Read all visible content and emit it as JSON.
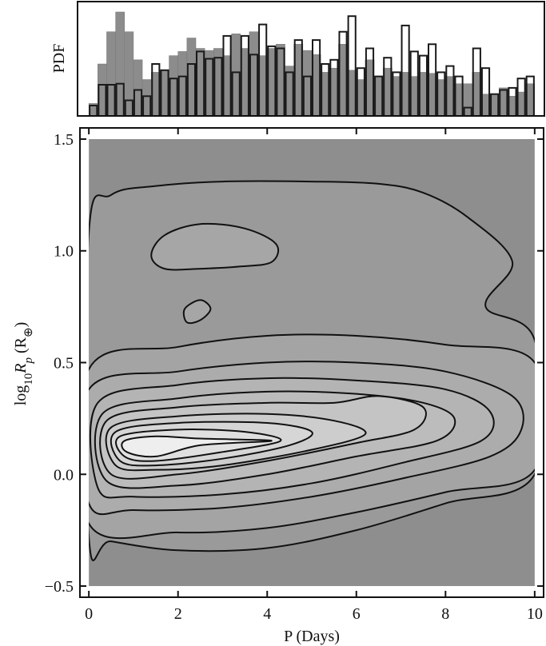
{
  "chart_data": [
    {
      "type": "histogram",
      "ylabel": "PDF",
      "xlim": [
        -0.2,
        10.2
      ],
      "ylim": [
        0,
        1.1
      ],
      "bins": [
        0,
        0.2,
        0.4,
        0.6,
        0.8,
        1,
        1.2,
        1.4,
        1.6,
        1.8,
        2,
        2.2,
        2.4,
        2.6,
        2.8,
        3,
        3.2,
        3.4,
        3.6,
        3.8,
        4,
        4.2,
        4.4,
        4.6,
        4.8,
        5,
        5.2,
        5.4,
        5.6,
        5.8,
        6,
        6.2,
        6.4,
        6.6,
        6.8,
        7,
        7.2,
        7.4,
        7.6,
        7.8,
        8,
        8.2,
        8.4,
        8.6,
        8.8,
        9,
        9.2,
        9.4,
        9.6,
        9.8,
        10
      ],
      "series": [
        {
          "color": "#8c8c8c",
          "filled": true,
          "values": [
            0.12,
            0.5,
            0.81,
            1.0,
            0.81,
            0.54,
            0.35,
            0.42,
            0.44,
            0.58,
            0.62,
            0.75,
            0.65,
            0.63,
            0.65,
            0.58,
            0.79,
            0.65,
            0.81,
            0.58,
            0.65,
            0.69,
            0.48,
            0.69,
            0.63,
            0.59,
            0.42,
            0.46,
            0.69,
            0.44,
            0.35,
            0.54,
            0.38,
            0.46,
            0.38,
            0.42,
            0.38,
            0.42,
            0.41,
            0.35,
            0.38,
            0.31,
            0.31,
            0.42,
            0.21,
            0.21,
            0.27,
            0.19,
            0.23,
            0.31
          ]
        },
        {
          "color": "#1a1a1a",
          "filled": false,
          "values": [
            0.1,
            0.3,
            0.3,
            0.31,
            0.15,
            0.25,
            0.19,
            0.5,
            0.44,
            0.36,
            0.38,
            0.5,
            0.62,
            0.55,
            0.56,
            0.77,
            0.42,
            0.77,
            0.59,
            0.88,
            0.67,
            0.65,
            0.42,
            0.73,
            0.38,
            0.73,
            0.5,
            0.54,
            0.81,
            0.96,
            0.46,
            0.65,
            0.38,
            0.56,
            0.42,
            0.87,
            0.62,
            0.58,
            0.69,
            0.42,
            0.48,
            0.38,
            0.08,
            0.65,
            0.46,
            0.21,
            0.25,
            0.27,
            0.36,
            0.38
          ]
        }
      ]
    },
    {
      "type": "contour",
      "xlabel": "P (Days)",
      "ylabel": [
        "log",
        "10",
        "R",
        "p",
        " (R",
        "⊕",
        ")"
      ],
      "xlim": [
        -0.2,
        10.2
      ],
      "ylim": [
        -0.55,
        1.55
      ],
      "xticks": [
        0,
        2,
        4,
        6,
        8,
        10
      ],
      "yticks": [
        {
          "value": -0.5,
          "label": "−0.5"
        },
        {
          "value": 0,
          "label": "0.0"
        },
        0.5,
        {
          "value": 1,
          "label": "1.0"
        },
        1.5
      ],
      "background": "#8e8e8e",
      "contours": [
        {
          "fill": "#9a9a9a",
          "x": [
            0,
            0.5,
            1.5,
            3,
            5,
            6.5,
            7.5,
            8.5,
            9.5,
            8.9,
            10,
            10,
            8,
            6,
            4,
            2,
            0.5,
            0
          ],
          "y": [
            1.08,
            1.25,
            1.29,
            1.31,
            1.31,
            1.3,
            1.26,
            1.15,
            0.95,
            0.75,
            0.6,
            0.0,
            -0.13,
            -0.25,
            -0.33,
            -0.34,
            -0.3,
            -0.28
          ]
        },
        {
          "fill": "#a6a6a6",
          "x": [
            1.4,
            1.7,
            2.5,
            3.5,
            4.2,
            4.1,
            3.4,
            2.5,
            1.7
          ],
          "y": [
            0.98,
            1.07,
            1.12,
            1.1,
            1.03,
            0.95,
            0.93,
            0.92,
            0.92
          ]
        },
        {
          "fill": "#a6a6a6",
          "x": [
            2.15,
            2.5,
            2.73,
            2.5,
            2.2
          ],
          "y": [
            0.74,
            0.78,
            0.74,
            0.69,
            0.68
          ]
        },
        {
          "fill": "#a4a4a4",
          "x": [
            0,
            2,
            4,
            6,
            8,
            10,
            10,
            8,
            6,
            4,
            2,
            0
          ],
          "y": [
            0.47,
            0.57,
            0.62,
            0.62,
            0.58,
            0.5,
            0.02,
            -0.08,
            -0.17,
            -0.24,
            -0.26,
            -0.22
          ]
        },
        {
          "fill": "#acacac",
          "x": [
            0,
            2,
            4,
            6,
            8,
            9.5,
            9.7,
            9,
            7,
            5,
            3,
            1,
            0
          ],
          "y": [
            0.38,
            0.46,
            0.5,
            0.5,
            0.46,
            0.35,
            0.2,
            0.08,
            -0.02,
            -0.1,
            -0.15,
            -0.16,
            -0.13
          ]
        },
        {
          "fill": "#b4b4b4",
          "x": [
            0.2,
            2,
            4,
            6,
            8,
            9,
            8.8,
            7,
            5,
            3,
            1,
            0.2
          ],
          "y": [
            0.32,
            0.4,
            0.43,
            0.42,
            0.38,
            0.28,
            0.15,
            0.05,
            -0.04,
            -0.09,
            -0.1,
            -0.06
          ]
        },
        {
          "fill": "#bcbcbc",
          "x": [
            0.3,
            2,
            4,
            6,
            7.5,
            8.2,
            7.8,
            6,
            4,
            2,
            0.4
          ],
          "y": [
            0.27,
            0.34,
            0.37,
            0.36,
            0.32,
            0.25,
            0.15,
            0.08,
            0.0,
            -0.05,
            -0.03
          ]
        },
        {
          "fill": "#c4c4c4",
          "x": [
            0.4,
            2,
            4,
            5.5,
            6.5,
            7.5,
            7.3,
            6,
            4,
            2,
            0.5
          ],
          "y": [
            0.24,
            0.3,
            0.32,
            0.32,
            0.35,
            0.3,
            0.2,
            0.14,
            0.06,
            0.0,
            0.0
          ]
        },
        {
          "fill": "#cdcdcd",
          "x": [
            0.5,
            2,
            4,
            5.5,
            6.2,
            5,
            3,
            1.5,
            0.6
          ],
          "y": [
            0.21,
            0.26,
            0.27,
            0.24,
            0.18,
            0.11,
            0.04,
            0.02,
            0.04
          ]
        },
        {
          "fill": "#d6d6d6",
          "x": [
            0.6,
            2,
            4,
            5,
            4.5,
            3,
            1.5,
            0.7
          ],
          "y": [
            0.19,
            0.23,
            0.23,
            0.19,
            0.13,
            0.07,
            0.04,
            0.06
          ]
        },
        {
          "fill": "#e0e0e0",
          "x": [
            0.7,
            2,
            3.5,
            4.3,
            3,
            1.5,
            0.8
          ],
          "y": [
            0.17,
            0.2,
            0.19,
            0.15,
            0.1,
            0.06,
            0.08
          ]
        },
        {
          "fill": "#eeeeee",
          "x": [
            0.8,
            1.5,
            2.5,
            4.1,
            2.5,
            1.5,
            0.85
          ],
          "y": [
            0.15,
            0.17,
            0.16,
            0.15,
            0.13,
            0.08,
            0.1
          ]
        }
      ]
    }
  ]
}
